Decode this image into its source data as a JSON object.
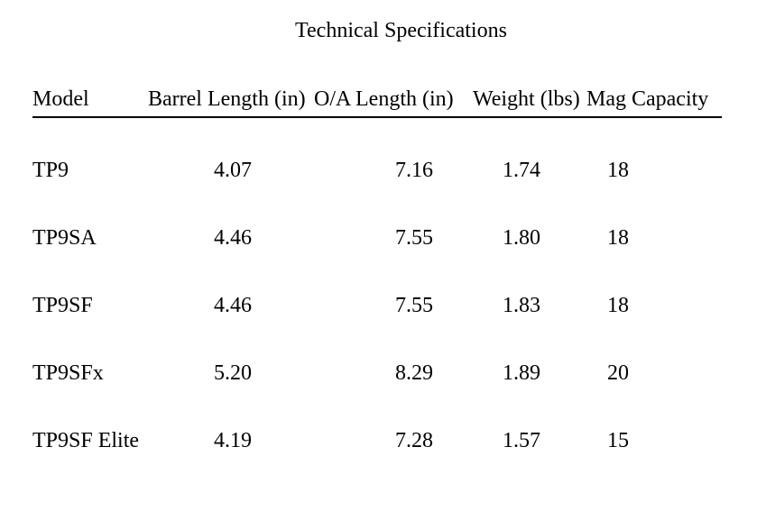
{
  "document": {
    "title": "Technical Specifications"
  },
  "spec_table": {
    "columns": [
      {
        "label": "Model"
      },
      {
        "label": "Barrel Length (in)"
      },
      {
        "label": "O/A Length (in)"
      },
      {
        "label": "Weight (lbs)"
      },
      {
        "label": "Mag Capacity"
      }
    ],
    "rows": [
      {
        "model": "TP9",
        "barrel_length_in": "4.07",
        "oa_length_in": "7.16",
        "weight_lbs": "1.74",
        "mag_capacity": "18"
      },
      {
        "model": "TP9SA",
        "barrel_length_in": "4.46",
        "oa_length_in": "7.55",
        "weight_lbs": "1.80",
        "mag_capacity": "18"
      },
      {
        "model": "TP9SF",
        "barrel_length_in": "4.46",
        "oa_length_in": "7.55",
        "weight_lbs": "1.83",
        "mag_capacity": "18"
      },
      {
        "model": "TP9SFx",
        "barrel_length_in": "5.20",
        "oa_length_in": "8.29",
        "weight_lbs": "1.89",
        "mag_capacity": "20"
      },
      {
        "model": "TP9SF Elite",
        "barrel_length_in": "4.19",
        "oa_length_in": "7.28",
        "weight_lbs": "1.57",
        "mag_capacity": "15"
      }
    ]
  },
  "colors": {
    "text": "#000000",
    "background": "#ffffff"
  }
}
